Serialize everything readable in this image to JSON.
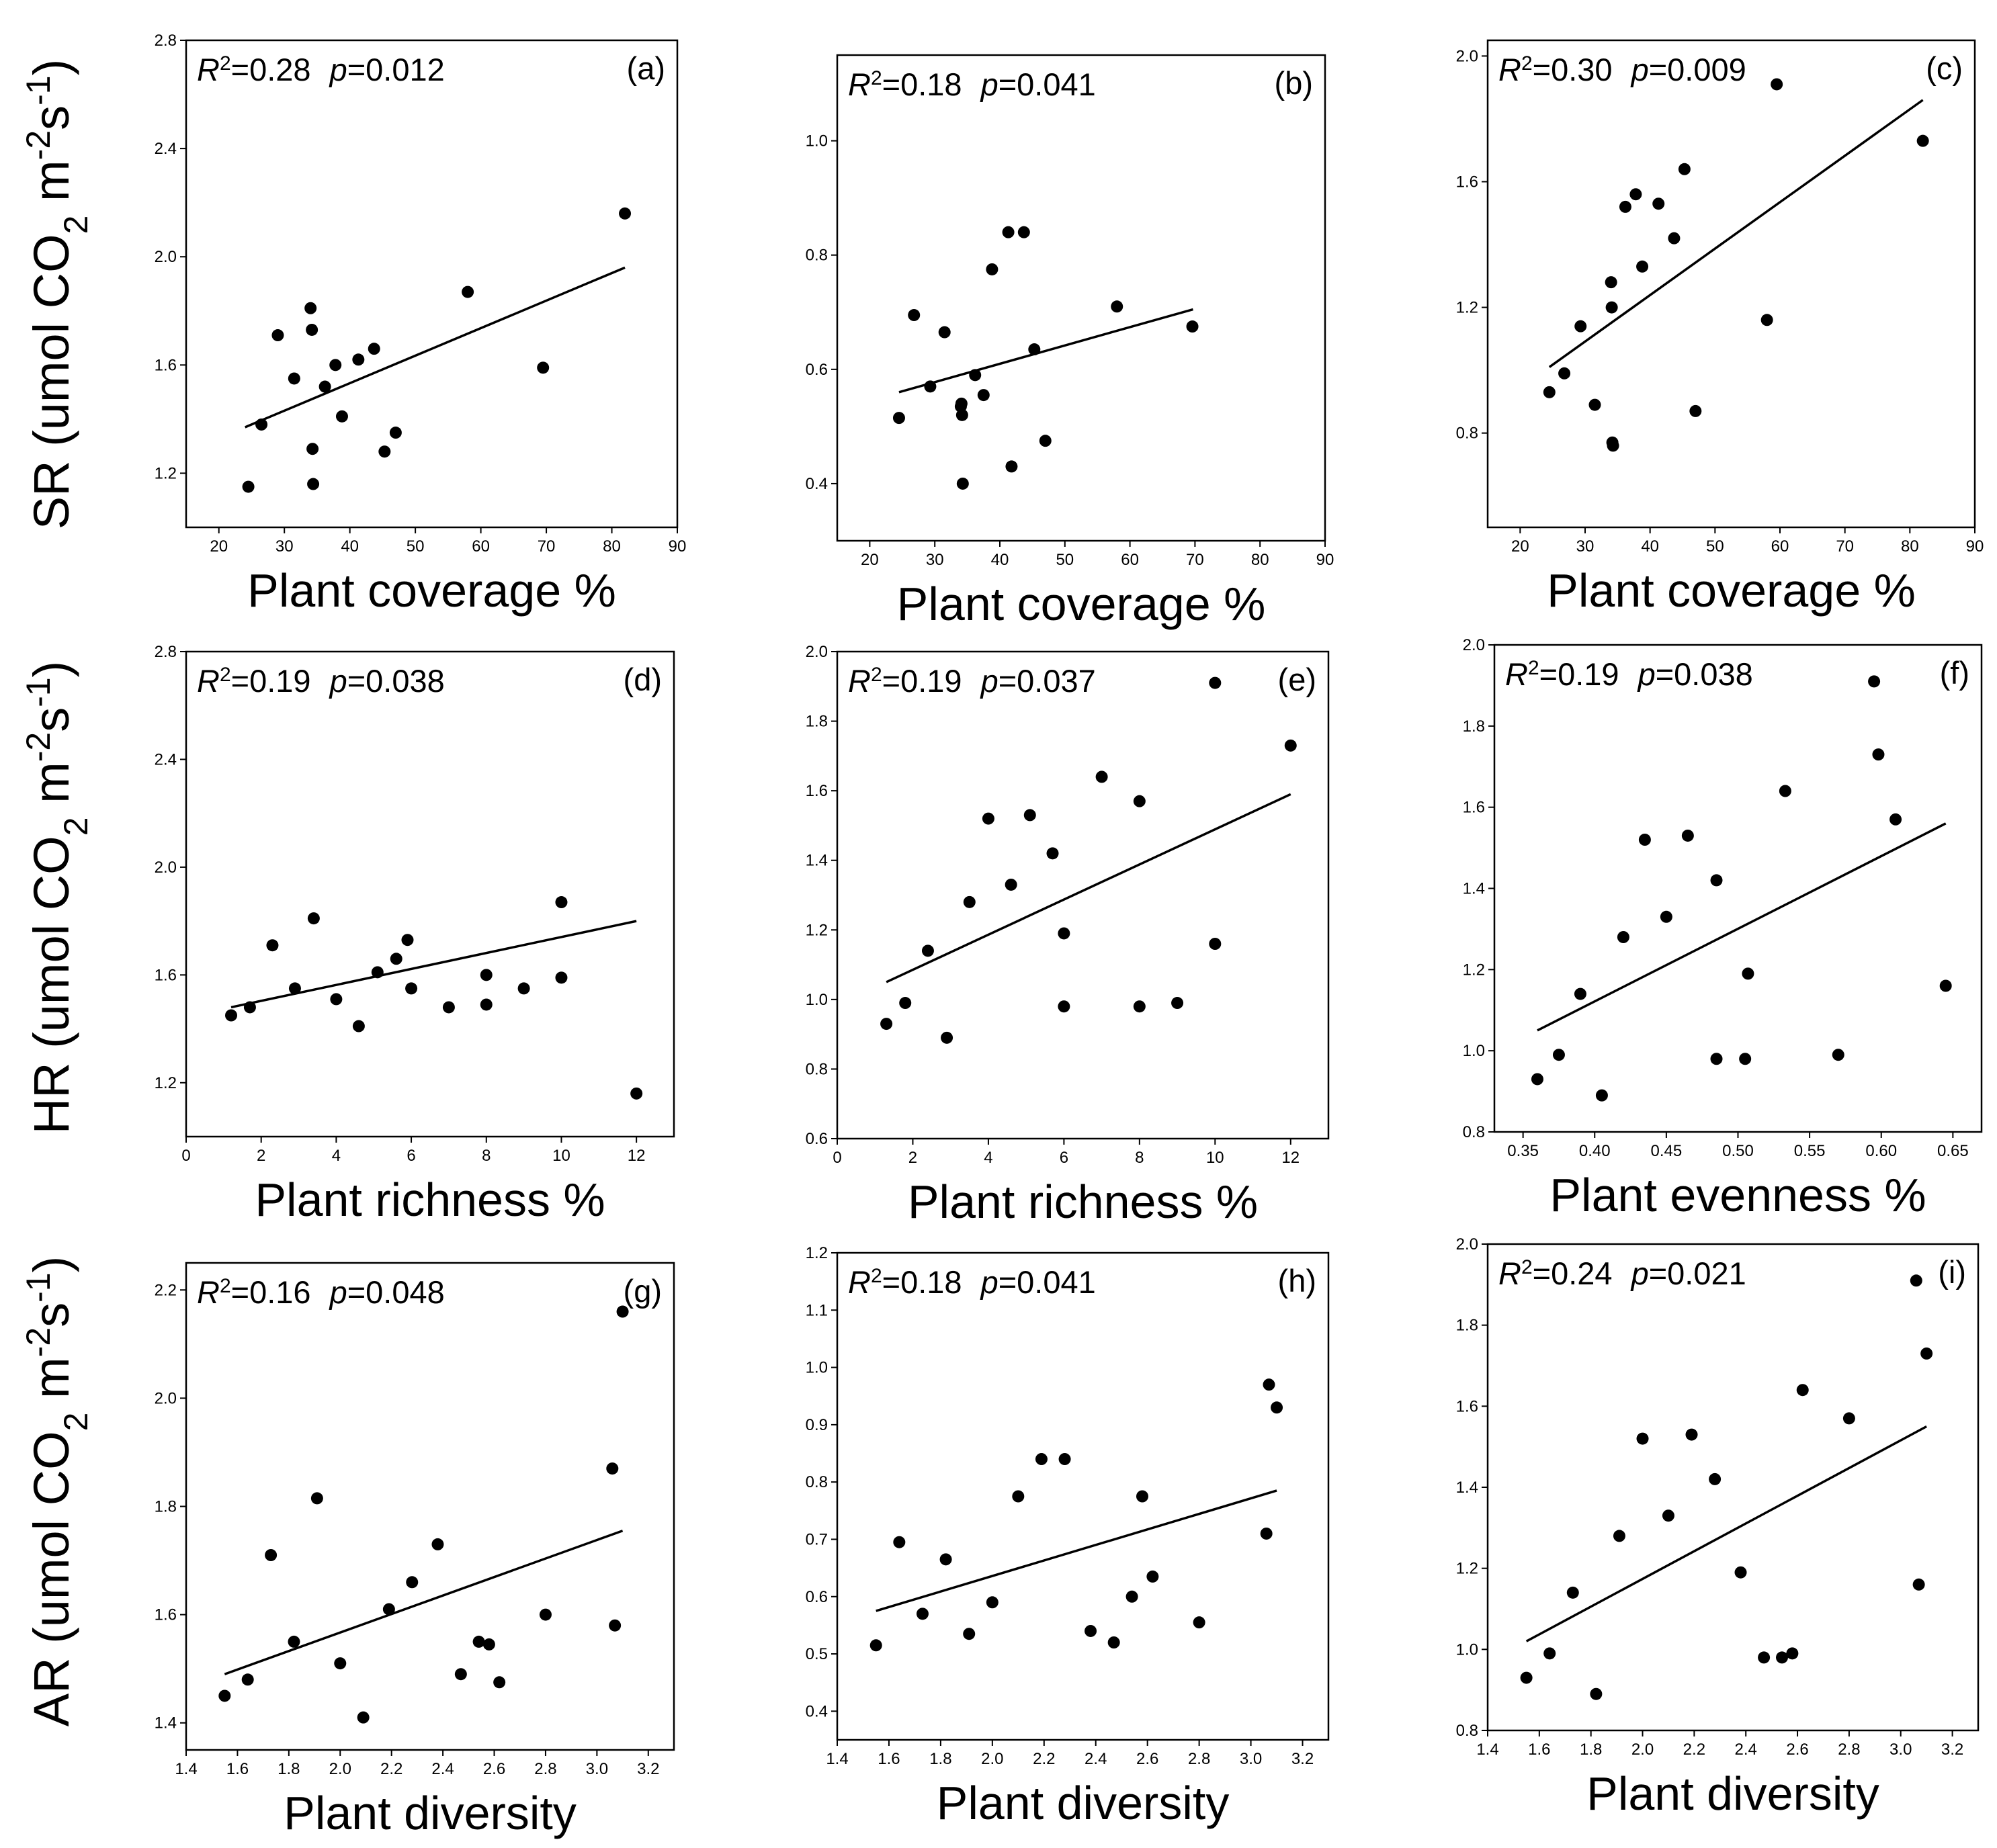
{
  "colors": {
    "ink": "#000000",
    "background": "#ffffff"
  },
  "row_labels": [
    {
      "main": "SR",
      "unit": "umol CO",
      "sub": "2",
      "m": " m",
      "mexp": "-2",
      "s": "s",
      "sexp": "-1"
    },
    {
      "main": "HR",
      "unit": "umol CO",
      "sub": "2",
      "m": " m",
      "mexp": "-2",
      "s": "s",
      "sexp": "-1"
    },
    {
      "main": "AR",
      "unit": "umol CO",
      "sub": "2",
      "m": " m",
      "mexp": "-2",
      "s": "s",
      "sexp": "-1"
    }
  ],
  "chart_data": [
    {
      "type": "scatter",
      "panel": "(a)",
      "stat": {
        "r2_label": "R",
        "r2_exp": "2",
        "r2": "=0.28",
        "p_label": "p",
        "p": "=0.012"
      },
      "xlabel": "Plant coverage %",
      "ylabel": "SR",
      "xlim": [
        15,
        90
      ],
      "ylim": [
        1.0,
        2.8
      ],
      "xticks": [
        "20",
        "30",
        "40",
        "50",
        "60",
        "70",
        "80",
        "90"
      ],
      "xtick_values": [
        20,
        30,
        40,
        50,
        60,
        70,
        80,
        90
      ],
      "yticks": [
        "1.2",
        "1.6",
        "2.0",
        "2.4",
        "2.8"
      ],
      "ytick_values": [
        1.2,
        1.6,
        2.0,
        2.4,
        2.8
      ],
      "points": [
        [
          24.5,
          1.15
        ],
        [
          26.5,
          1.38
        ],
        [
          29,
          1.71
        ],
        [
          31.5,
          1.55
        ],
        [
          34,
          1.81
        ],
        [
          34.2,
          1.73
        ],
        [
          34.3,
          1.29
        ],
        [
          34.4,
          1.16
        ],
        [
          36.2,
          1.52
        ],
        [
          37.8,
          1.6
        ],
        [
          38.8,
          1.41
        ],
        [
          41.3,
          1.62
        ],
        [
          43.7,
          1.66
        ],
        [
          45.3,
          1.28
        ],
        [
          47,
          1.35
        ],
        [
          58,
          1.87
        ],
        [
          69.5,
          1.59
        ],
        [
          82,
          2.16
        ]
      ],
      "fit": [
        [
          24,
          1.37
        ],
        [
          82,
          1.96
        ]
      ]
    },
    {
      "type": "scatter",
      "panel": "(b)",
      "stat": {
        "r2_label": "R",
        "r2_exp": "2",
        "r2": "=0.18",
        "p_label": "p",
        "p": "=0.041"
      },
      "xlabel": "Plant coverage %",
      "ylabel": "SR",
      "xlim": [
        15,
        90
      ],
      "ylim": [
        0.3,
        1.15
      ],
      "xticks": [
        "20",
        "30",
        "40",
        "50",
        "60",
        "70",
        "80",
        "90"
      ],
      "xtick_values": [
        20,
        30,
        40,
        50,
        60,
        70,
        80,
        90
      ],
      "yticks": [
        "0.4",
        "0.6",
        "0.8",
        "1.0"
      ],
      "ytick_values": [
        0.4,
        0.6,
        0.8,
        1.0
      ],
      "points": [
        [
          24.5,
          0.515
        ],
        [
          26.8,
          0.695
        ],
        [
          29.3,
          0.57
        ],
        [
          31.5,
          0.665
        ],
        [
          34,
          0.535
        ],
        [
          34.1,
          0.54
        ],
        [
          34.2,
          0.52
        ],
        [
          34.3,
          0.4
        ],
        [
          36.2,
          0.59
        ],
        [
          37.5,
          0.555
        ],
        [
          38.8,
          0.775
        ],
        [
          41.3,
          0.84
        ],
        [
          41.8,
          0.43
        ],
        [
          43.7,
          0.84
        ],
        [
          45.3,
          0.635
        ],
        [
          47,
          0.475
        ],
        [
          58,
          0.71
        ],
        [
          69.6,
          0.675
        ]
      ],
      "fit": [
        [
          24.5,
          0.56
        ],
        [
          69.7,
          0.705
        ]
      ]
    },
    {
      "type": "scatter",
      "panel": "(c)",
      "stat": {
        "r2_label": "R",
        "r2_exp": "2",
        "r2": "=0.30",
        "p_label": "p",
        "p": "=0.009"
      },
      "xlabel": "Plant coverage %",
      "ylabel": "SR",
      "xlim": [
        15,
        90
      ],
      "ylim": [
        0.5,
        2.05
      ],
      "xticks": [
        "20",
        "30",
        "40",
        "50",
        "60",
        "70",
        "80",
        "90"
      ],
      "xtick_values": [
        20,
        30,
        40,
        50,
        60,
        70,
        80,
        90
      ],
      "yticks": [
        "0.8",
        "1.2",
        "1.6",
        "2.0"
      ],
      "ytick_values": [
        0.8,
        1.2,
        1.6,
        2.0
      ],
      "points": [
        [
          24.5,
          0.93
        ],
        [
          26.8,
          0.99
        ],
        [
          29.3,
          1.14
        ],
        [
          31.5,
          0.89
        ],
        [
          34,
          1.28
        ],
        [
          34.1,
          1.2
        ],
        [
          34.2,
          0.77
        ],
        [
          34.3,
          0.76
        ],
        [
          36.2,
          1.52
        ],
        [
          37.8,
          1.56
        ],
        [
          38.8,
          1.33
        ],
        [
          41.3,
          1.53
        ],
        [
          43.7,
          1.42
        ],
        [
          45.3,
          1.64
        ],
        [
          47,
          0.87
        ],
        [
          58,
          1.16
        ],
        [
          59.5,
          1.91
        ],
        [
          82,
          1.73
        ]
      ],
      "fit": [
        [
          24.5,
          1.01
        ],
        [
          82,
          1.86
        ]
      ]
    },
    {
      "type": "scatter",
      "panel": "(d)",
      "stat": {
        "r2_label": "R",
        "r2_exp": "2",
        "r2": "=0.19",
        "p_label": "p",
        "p": "=0.038"
      },
      "xlabel": "Plant richness %",
      "ylabel": "HR",
      "xlim": [
        0,
        13
      ],
      "ylim": [
        1.0,
        2.8
      ],
      "xticks": [
        "0",
        "2",
        "4",
        "6",
        "8",
        "10",
        "12"
      ],
      "xtick_values": [
        0,
        2,
        4,
        6,
        8,
        10,
        12
      ],
      "yticks": [
        "1.2",
        "1.6",
        "2.0",
        "2.4",
        "2.8"
      ],
      "ytick_values": [
        1.2,
        1.6,
        2.0,
        2.4,
        2.8
      ],
      "points": [
        [
          1.2,
          1.45
        ],
        [
          1.7,
          1.48
        ],
        [
          2.3,
          1.71
        ],
        [
          2.9,
          1.55
        ],
        [
          3.4,
          1.81
        ],
        [
          4.0,
          1.51
        ],
        [
          4.6,
          1.41
        ],
        [
          5.1,
          1.61
        ],
        [
          5.6,
          1.66
        ],
        [
          5.9,
          1.73
        ],
        [
          6.0,
          1.55
        ],
        [
          7.0,
          1.48
        ],
        [
          8.0,
          1.6
        ],
        [
          8.0,
          1.49
        ],
        [
          9.0,
          1.55
        ],
        [
          10.0,
          1.87
        ],
        [
          10.0,
          1.59
        ],
        [
          12.0,
          1.16
        ]
      ],
      "fit": [
        [
          1.2,
          1.48
        ],
        [
          12,
          1.8
        ]
      ]
    },
    {
      "type": "scatter",
      "panel": "(e)",
      "stat": {
        "r2_label": "R",
        "r2_exp": "2",
        "r2": "=0.19",
        "p_label": "p",
        "p": "=0.037"
      },
      "xlabel": "Plant richness %",
      "ylabel": "HR",
      "xlim": [
        0,
        13
      ],
      "ylim": [
        0.6,
        2.0
      ],
      "xticks": [
        "0",
        "2",
        "4",
        "6",
        "8",
        "10",
        "12"
      ],
      "xtick_values": [
        0,
        2,
        4,
        6,
        8,
        10,
        12
      ],
      "yticks": [
        "0.6",
        "0.8",
        "1.0",
        "1.2",
        "1.4",
        "1.6",
        "1.8",
        "2.0"
      ],
      "ytick_values": [
        0.6,
        0.8,
        1.0,
        1.2,
        1.4,
        1.6,
        1.8,
        2.0
      ],
      "points": [
        [
          1.3,
          0.93
        ],
        [
          1.8,
          0.99
        ],
        [
          2.4,
          1.14
        ],
        [
          2.9,
          0.89
        ],
        [
          3.5,
          1.28
        ],
        [
          4.0,
          1.52
        ],
        [
          4.6,
          1.33
        ],
        [
          5.1,
          1.53
        ],
        [
          5.7,
          1.42
        ],
        [
          6.0,
          1.19
        ],
        [
          6.0,
          0.98
        ],
        [
          7.0,
          1.64
        ],
        [
          8.0,
          1.57
        ],
        [
          8.0,
          0.98
        ],
        [
          9.0,
          0.99
        ],
        [
          10.0,
          1.91
        ],
        [
          10.0,
          1.16
        ],
        [
          12.0,
          1.73
        ]
      ],
      "fit": [
        [
          1.3,
          1.05
        ],
        [
          12,
          1.59
        ]
      ]
    },
    {
      "type": "scatter",
      "panel": "(f)",
      "stat": {
        "r2_label": "R",
        "r2_exp": "2",
        "r2": "=0.19",
        "p_label": "p",
        "p": "=0.038"
      },
      "xlabel": "Plant evenness %",
      "ylabel": "HR",
      "xlim": [
        0.33,
        0.67
      ],
      "ylim": [
        0.8,
        2.0
      ],
      "xticks": [
        "0.35",
        "0.40",
        "0.45",
        "0.50",
        "0.55",
        "0.60",
        "0.65"
      ],
      "xtick_values": [
        0.35,
        0.4,
        0.45,
        0.5,
        0.55,
        0.6,
        0.65
      ],
      "yticks": [
        "0.8",
        "1.0",
        "1.2",
        "1.4",
        "1.6",
        "1.8",
        "2.0"
      ],
      "ytick_values": [
        0.8,
        1.0,
        1.2,
        1.4,
        1.6,
        1.8,
        2.0
      ],
      "points": [
        [
          0.36,
          0.93
        ],
        [
          0.375,
          0.99
        ],
        [
          0.39,
          1.14
        ],
        [
          0.405,
          0.89
        ],
        [
          0.42,
          1.28
        ],
        [
          0.435,
          1.52
        ],
        [
          0.45,
          1.33
        ],
        [
          0.465,
          1.53
        ],
        [
          0.485,
          1.42
        ],
        [
          0.485,
          0.98
        ],
        [
          0.505,
          0.98
        ],
        [
          0.507,
          1.19
        ],
        [
          0.533,
          1.64
        ],
        [
          0.57,
          0.99
        ],
        [
          0.595,
          1.91
        ],
        [
          0.598,
          1.73
        ],
        [
          0.61,
          1.57
        ],
        [
          0.645,
          1.16
        ]
      ],
      "fit": [
        [
          0.36,
          1.05
        ],
        [
          0.645,
          1.56
        ]
      ]
    },
    {
      "type": "scatter",
      "panel": "(g)",
      "stat": {
        "r2_label": "R",
        "r2_exp": "2",
        "r2": "=0.16",
        "p_label": "p",
        "p": "=0.048"
      },
      "xlabel": "Plant diversity",
      "ylabel": "AR",
      "xlim": [
        1.4,
        3.3
      ],
      "ylim": [
        1.35,
        2.25
      ],
      "xticks": [
        "1.4",
        "1.6",
        "1.8",
        "2.0",
        "2.2",
        "2.4",
        "2.6",
        "2.8",
        "3.0",
        "3.2"
      ],
      "xtick_values": [
        1.4,
        1.6,
        1.8,
        2.0,
        2.2,
        2.4,
        2.6,
        2.8,
        3.0,
        3.2
      ],
      "yticks": [
        "1.4",
        "1.6",
        "1.8",
        "2.0",
        "2.2"
      ],
      "ytick_values": [
        1.4,
        1.6,
        1.8,
        2.0,
        2.2
      ],
      "points": [
        [
          1.55,
          1.45
        ],
        [
          1.64,
          1.48
        ],
        [
          1.73,
          1.71
        ],
        [
          1.82,
          1.55
        ],
        [
          1.91,
          1.815
        ],
        [
          2.0,
          1.51
        ],
        [
          2.09,
          1.41
        ],
        [
          2.19,
          1.61
        ],
        [
          2.28,
          1.66
        ],
        [
          2.38,
          1.73
        ],
        [
          2.47,
          1.49
        ],
        [
          2.54,
          1.55
        ],
        [
          2.58,
          1.545
        ],
        [
          2.62,
          1.475
        ],
        [
          2.8,
          1.6
        ],
        [
          3.06,
          1.87
        ],
        [
          3.07,
          1.58
        ],
        [
          3.1,
          2.16
        ]
      ],
      "fit": [
        [
          1.55,
          1.49
        ],
        [
          3.1,
          1.755
        ]
      ]
    },
    {
      "type": "scatter",
      "panel": "(h)",
      "stat": {
        "r2_label": "R",
        "r2_exp": "2",
        "r2": "=0.18",
        "p_label": "p",
        "p": "=0.041"
      },
      "xlabel": "Plant diversity",
      "ylabel": "AR",
      "xlim": [
        1.4,
        3.3
      ],
      "ylim": [
        0.35,
        1.2
      ],
      "xticks": [
        "1.4",
        "1.6",
        "1.8",
        "2.0",
        "2.2",
        "2.4",
        "2.6",
        "2.8",
        "3.0",
        "3.2"
      ],
      "xtick_values": [
        1.4,
        1.6,
        1.8,
        2.0,
        2.2,
        2.4,
        2.6,
        2.8,
        3.0,
        3.2
      ],
      "yticks": [
        "0.4",
        "0.5",
        "0.6",
        "0.7",
        "0.8",
        "0.9",
        "1.0",
        "1.1",
        "1.2"
      ],
      "ytick_values": [
        0.4,
        0.5,
        0.6,
        0.7,
        0.8,
        0.9,
        1.0,
        1.1,
        1.2
      ],
      "points": [
        [
          1.55,
          0.515
        ],
        [
          1.64,
          0.695
        ],
        [
          1.73,
          0.57
        ],
        [
          1.82,
          0.665
        ],
        [
          1.91,
          0.535
        ],
        [
          2.0,
          0.59
        ],
        [
          2.1,
          0.775
        ],
        [
          2.19,
          0.84
        ],
        [
          2.28,
          0.84
        ],
        [
          2.38,
          0.54
        ],
        [
          2.47,
          0.52
        ],
        [
          2.54,
          0.6
        ],
        [
          2.58,
          0.775
        ],
        [
          2.62,
          0.635
        ],
        [
          2.8,
          0.555
        ],
        [
          3.06,
          0.71
        ],
        [
          3.07,
          0.97
        ],
        [
          3.1,
          0.93
        ]
      ],
      "fit": [
        [
          1.55,
          0.575
        ],
        [
          3.1,
          0.785
        ]
      ]
    },
    {
      "type": "scatter",
      "panel": "(i)",
      "stat": {
        "r2_label": "R",
        "r2_exp": "2",
        "r2": "=0.24",
        "p_label": "p",
        "p": "=0.021"
      },
      "xlabel": "Plant diversity",
      "ylabel": "AR",
      "xlim": [
        1.4,
        3.3
      ],
      "ylim": [
        0.8,
        2.0
      ],
      "xticks": [
        "1.4",
        "1.6",
        "1.8",
        "2.0",
        "2.2",
        "2.4",
        "2.6",
        "2.8",
        "3.0",
        "3.2"
      ],
      "xtick_values": [
        1.4,
        1.6,
        1.8,
        2.0,
        2.2,
        2.4,
        2.6,
        2.8,
        3.0,
        3.2
      ],
      "yticks": [
        "0.8",
        "1.0",
        "1.2",
        "1.4",
        "1.6",
        "1.8",
        "2.0"
      ],
      "ytick_values": [
        0.8,
        1.0,
        1.2,
        1.4,
        1.6,
        1.8,
        2.0
      ],
      "points": [
        [
          1.55,
          0.93
        ],
        [
          1.64,
          0.99
        ],
        [
          1.73,
          1.14
        ],
        [
          1.82,
          0.89
        ],
        [
          1.91,
          1.28
        ],
        [
          2.0,
          1.52
        ],
        [
          2.1,
          1.33
        ],
        [
          2.19,
          1.53
        ],
        [
          2.28,
          1.42
        ],
        [
          2.38,
          1.19
        ],
        [
          2.47,
          0.98
        ],
        [
          2.54,
          0.98
        ],
        [
          2.58,
          0.99
        ],
        [
          2.62,
          1.64
        ],
        [
          2.8,
          1.57
        ],
        [
          3.06,
          1.91
        ],
        [
          3.07,
          1.16
        ],
        [
          3.1,
          1.73
        ]
      ],
      "fit": [
        [
          1.55,
          1.02
        ],
        [
          3.1,
          1.55
        ]
      ]
    }
  ]
}
